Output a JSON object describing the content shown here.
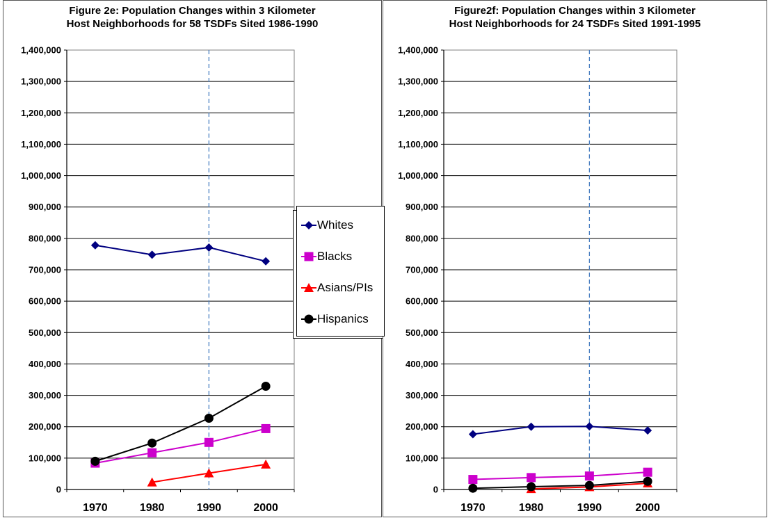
{
  "chart_data": [
    {
      "type": "line",
      "title": "Figure 2e: Population Changes within 3 Kilometer",
      "subtitle": "Host Neighborhoods for 58 TSDFs Sited 1986-1990",
      "categories": [
        "1970",
        "1980",
        "1990",
        "2000"
      ],
      "ylim": [
        0,
        1400000
      ],
      "ytick_step": 100000,
      "grid": true,
      "reference_line": "1990",
      "legend_position": "right",
      "series": [
        {
          "name": "Whites",
          "color": "#000080",
          "marker": "diamond",
          "values": [
            778000,
            748000,
            771000,
            727000
          ]
        },
        {
          "name": "Blacks",
          "color": "#cc00cc",
          "marker": "square",
          "values": [
            84000,
            117000,
            150000,
            194000
          ]
        },
        {
          "name": "Asians/PIs",
          "color": "#ff0000",
          "marker": "triangle",
          "values": [
            null,
            23000,
            52000,
            80000
          ]
        },
        {
          "name": "Hispanics",
          "color": "#000000",
          "marker": "circle",
          "values": [
            90000,
            148000,
            227000,
            329000
          ]
        }
      ],
      "yticks": [
        "0",
        "100,000",
        "200,000",
        "300,000",
        "400,000",
        "500,000",
        "600,000",
        "700,000",
        "800,000",
        "900,000",
        "1,000,000",
        "1,100,000",
        "1,200,000",
        "1,300,000",
        "1,400,000"
      ]
    },
    {
      "type": "line",
      "title": "Figure2f: Population Changes within 3 Kilometer",
      "subtitle": "Host Neighborhoods for 24 TSDFs Sited 1991-1995",
      "categories": [
        "1970",
        "1980",
        "1990",
        "2000"
      ],
      "ylim": [
        0,
        1400000
      ],
      "ytick_step": 100000,
      "grid": true,
      "reference_line": "1990",
      "legend_position": "right",
      "series": [
        {
          "name": "Whites",
          "color": "#000080",
          "marker": "diamond",
          "values": [
            176000,
            200000,
            201000,
            188000
          ]
        },
        {
          "name": "Blacks",
          "color": "#cc00cc",
          "marker": "square",
          "values": [
            32000,
            38000,
            43000,
            55000
          ]
        },
        {
          "name": "Asians/PIs",
          "color": "#ff0000",
          "marker": "triangle",
          "values": [
            null,
            2000,
            8000,
            20000
          ]
        },
        {
          "name": "Hispanics",
          "color": "#000000",
          "marker": "circle",
          "values": [
            4000,
            9000,
            13000,
            26000
          ]
        }
      ],
      "yticks": [
        "0",
        "100,000",
        "200,000",
        "300,000",
        "400,000",
        "500,000",
        "600,000",
        "700,000",
        "800,000",
        "900,000",
        "1,000,000",
        "1,100,000",
        "1,200,000",
        "1,300,000",
        "1,400,000"
      ]
    }
  ]
}
